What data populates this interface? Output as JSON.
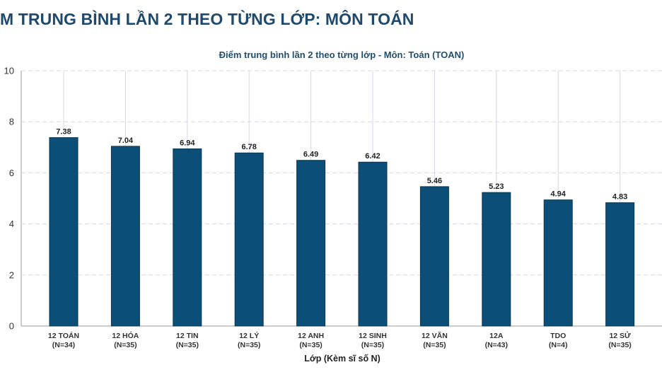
{
  "page_heading": "M TRUNG BÌNH LẦN 2 THEO TỪNG LỚP: MÔN TOÁN",
  "colors": {
    "bar": "#0b4e78",
    "heading": "#1f4a6d",
    "grid": "#d9d6e6"
  },
  "chart_data": {
    "type": "bar",
    "title": "Điểm trung bình lần 2 theo từng lớp - Môn: Toán (TOAN)",
    "xlabel": "Lớp (Kèm sĩ số N)",
    "ylabel": "",
    "ylim": [
      0,
      10
    ],
    "yticks": [
      0,
      2,
      4,
      6,
      8,
      10
    ],
    "grid": true,
    "categories": [
      {
        "name": "12 TOÁN",
        "n": "(N=34)"
      },
      {
        "name": "12 HÓA",
        "n": "(N=35)"
      },
      {
        "name": "12 TIN",
        "n": "(N=35)"
      },
      {
        "name": "12 LÝ",
        "n": "(N=35)"
      },
      {
        "name": "12 ANH",
        "n": "(N=35)"
      },
      {
        "name": "12 SINH",
        "n": "(N=35)"
      },
      {
        "name": "12 VĂN",
        "n": "(N=35)"
      },
      {
        "name": "12A",
        "n": "(N=43)"
      },
      {
        "name": "TDO",
        "n": "(N=4)"
      },
      {
        "name": "12 SỬ",
        "n": "(N=35)"
      }
    ],
    "values": [
      7.38,
      7.04,
      6.94,
      6.78,
      6.49,
      6.42,
      5.46,
      5.23,
      4.94,
      4.83
    ]
  }
}
